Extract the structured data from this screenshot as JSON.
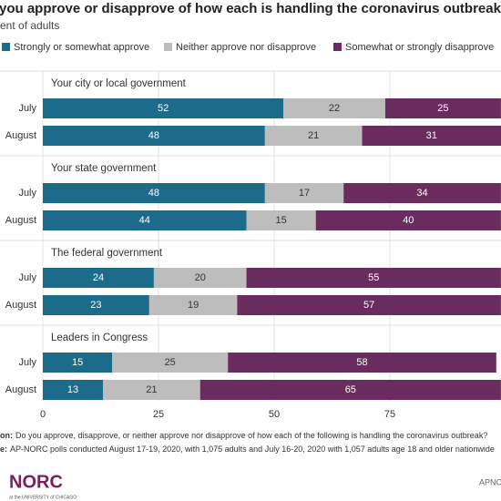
{
  "chart_data": {
    "type": "stacked-bar-horizontal",
    "title": "you approve or disapprove of how each is handling the coronavirus outbreak?",
    "subtitle": "ent of adults",
    "groups": [
      "Your city or local government",
      "Your state government",
      "The federal government",
      "Leaders in Congress"
    ],
    "categories": [
      "July",
      "August",
      "July",
      "August",
      "July",
      "August",
      "July",
      "August"
    ],
    "series": [
      {
        "name": "Strongly or somewhat approve",
        "color": "#1c6b8a",
        "values": [
          52,
          48,
          48,
          44,
          24,
          23,
          15,
          13
        ]
      },
      {
        "name": "Neither approve nor disapprove",
        "color": "#bdbdbd",
        "values": [
          22,
          21,
          17,
          15,
          20,
          19,
          25,
          21
        ]
      },
      {
        "name": "Somewhat or strongly disapprove",
        "color": "#6a2c5f",
        "values": [
          25,
          31,
          34,
          40,
          55,
          57,
          58,
          65
        ]
      }
    ],
    "xlim": [
      0,
      100
    ],
    "xticks": [
      0,
      25,
      50,
      75
    ],
    "grid": true,
    "notes": [
      {
        "label": "on:",
        "text": "Do you approve, disapprove, or neither approve nor disapprove of how each of the following is handling the coronavirus outbreak?"
      },
      {
        "label": "e:",
        "text": "AP-NORC polls conducted August 17-19, 2020, with 1,075 adults and July 16-20, 2020 with 1,057 adults age 18 and older nationwide"
      }
    ],
    "logo": "NORC",
    "logo_sub": "at the UNIVERSITY of CHICAGO",
    "brand": "APNO"
  }
}
